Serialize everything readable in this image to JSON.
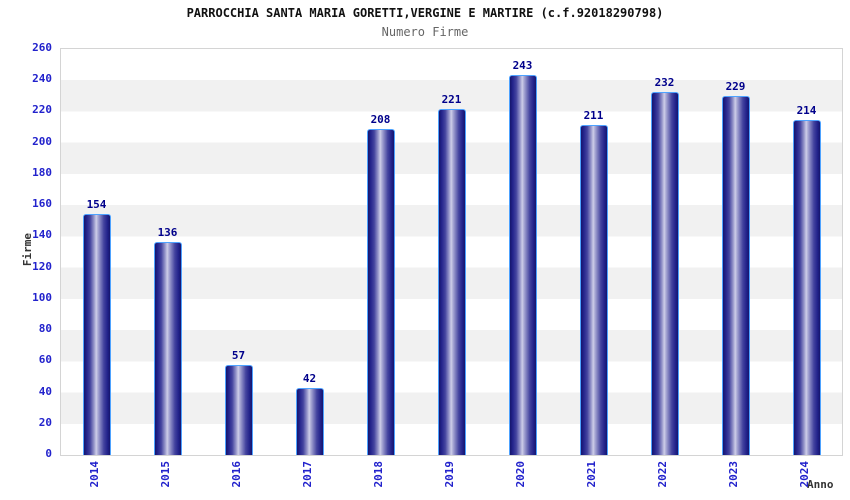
{
  "chart_data": {
    "type": "bar",
    "title": "PARROCCHIA SANTA MARIA GORETTI,VERGINE E MARTIRE (c.f.92018290798)",
    "subtitle": "Numero Firme",
    "xlabel": "Anno",
    "ylabel": "Firme",
    "categories": [
      "2014",
      "2015",
      "2016",
      "2017",
      "2018",
      "2019",
      "2020",
      "2021",
      "2022",
      "2023",
      "2024"
    ],
    "values": [
      154,
      136,
      57,
      42,
      208,
      221,
      243,
      211,
      232,
      229,
      214
    ],
    "ylim": [
      0,
      260
    ],
    "ytick_step": 20,
    "grid": "alternating-horizontal-bands",
    "legend": "none",
    "colors": {
      "tick_label": "#2222cc",
      "value_label": "#00008b",
      "bar_border": "#4da2ff",
      "bar_gradient_dark": "#15156d",
      "bar_gradient_light": "#cdcde8",
      "band_fill": "#f1f1f1",
      "plot_border": "#d4d4d4",
      "title": "#111111",
      "subtitle": "#666666",
      "axis_title": "#333333"
    }
  }
}
